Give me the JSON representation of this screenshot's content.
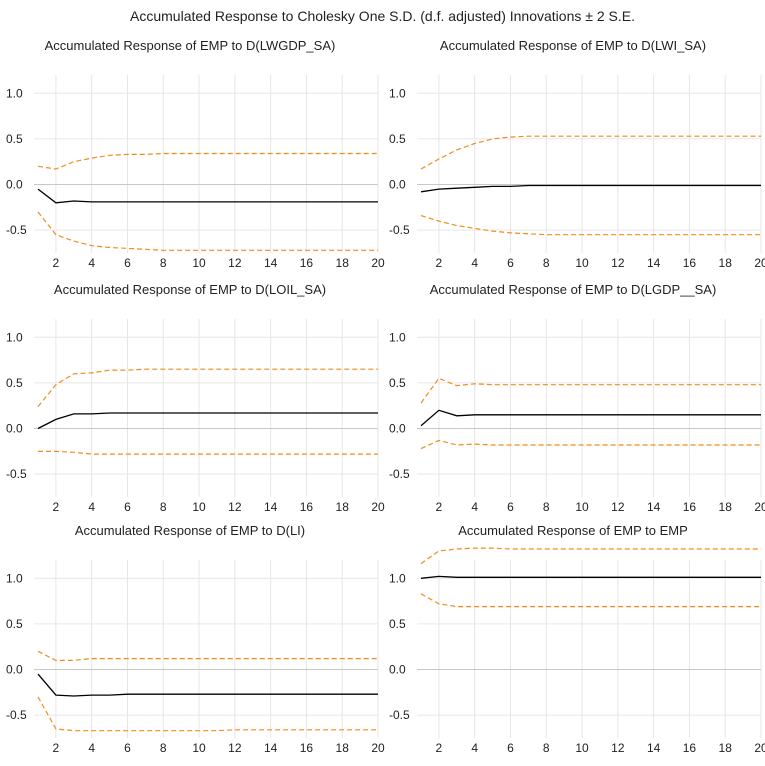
{
  "title": "Accumulated Response to Cholesky One S.D. (d.f. adjusted) Innovations ± 2 S.E.",
  "colors": {
    "response": "#000000",
    "bands": "#f08c1e",
    "grid": "#e6e6e6",
    "zero": "#c8c8c8"
  },
  "chart_data": [
    {
      "type": "line",
      "title": "Accumulated Response of EMP to D(LWGDP_SA)",
      "x": [
        1,
        2,
        3,
        4,
        5,
        6,
        7,
        8,
        9,
        10,
        11,
        12,
        13,
        14,
        15,
        16,
        17,
        18,
        19,
        20
      ],
      "xticks": [
        2,
        4,
        6,
        8,
        10,
        12,
        14,
        16,
        18,
        20
      ],
      "yticks": [
        -0.5,
        0.0,
        0.5,
        1.0
      ],
      "ylim": [
        -0.75,
        1.2
      ],
      "grid": true,
      "series": [
        {
          "role": "response",
          "values": [
            -0.05,
            -0.2,
            -0.18,
            -0.19,
            -0.19,
            -0.19,
            -0.19,
            -0.19,
            -0.19,
            -0.19,
            -0.19,
            -0.19,
            -0.19,
            -0.19,
            -0.19,
            -0.19,
            -0.19,
            -0.19,
            -0.19,
            -0.19
          ]
        },
        {
          "role": "upper",
          "values": [
            0.2,
            0.17,
            0.25,
            0.29,
            0.32,
            0.33,
            0.33,
            0.34,
            0.34,
            0.34,
            0.34,
            0.34,
            0.34,
            0.34,
            0.34,
            0.34,
            0.34,
            0.34,
            0.34,
            0.34
          ]
        },
        {
          "role": "lower",
          "values": [
            -0.3,
            -0.55,
            -0.62,
            -0.67,
            -0.69,
            -0.7,
            -0.71,
            -0.72,
            -0.72,
            -0.72,
            -0.72,
            -0.72,
            -0.72,
            -0.72,
            -0.72,
            -0.72,
            -0.72,
            -0.72,
            -0.72,
            -0.72
          ]
        }
      ]
    },
    {
      "type": "line",
      "title": "Accumulated Response of EMP to D(LWI_SA)",
      "x": [
        1,
        2,
        3,
        4,
        5,
        6,
        7,
        8,
        9,
        10,
        11,
        12,
        13,
        14,
        15,
        16,
        17,
        18,
        19,
        20
      ],
      "xticks": [
        2,
        4,
        6,
        8,
        10,
        12,
        14,
        16,
        18,
        20
      ],
      "yticks": [
        -0.5,
        0.0,
        0.5,
        1.0
      ],
      "ylim": [
        -0.75,
        1.2
      ],
      "grid": true,
      "series": [
        {
          "role": "response",
          "values": [
            -0.08,
            -0.05,
            -0.04,
            -0.03,
            -0.02,
            -0.02,
            -0.01,
            -0.01,
            -0.01,
            -0.01,
            -0.01,
            -0.01,
            -0.01,
            -0.01,
            -0.01,
            -0.01,
            -0.01,
            -0.01,
            -0.01,
            -0.01
          ]
        },
        {
          "role": "upper",
          "values": [
            0.17,
            0.28,
            0.38,
            0.45,
            0.5,
            0.52,
            0.53,
            0.53,
            0.53,
            0.53,
            0.53,
            0.53,
            0.53,
            0.53,
            0.53,
            0.53,
            0.53,
            0.53,
            0.53,
            0.53
          ]
        },
        {
          "role": "lower",
          "values": [
            -0.34,
            -0.4,
            -0.45,
            -0.48,
            -0.51,
            -0.53,
            -0.54,
            -0.55,
            -0.55,
            -0.55,
            -0.55,
            -0.55,
            -0.55,
            -0.55,
            -0.55,
            -0.55,
            -0.55,
            -0.55,
            -0.55,
            -0.55
          ]
        }
      ]
    },
    {
      "type": "line",
      "title": "Accumulated Response of EMP to D(LOIL_SA)",
      "x": [
        1,
        2,
        3,
        4,
        5,
        6,
        7,
        8,
        9,
        10,
        11,
        12,
        13,
        14,
        15,
        16,
        17,
        18,
        19,
        20
      ],
      "xticks": [
        2,
        4,
        6,
        8,
        10,
        12,
        14,
        16,
        18,
        20
      ],
      "yticks": [
        -0.5,
        0.0,
        0.5,
        1.0
      ],
      "ylim": [
        -0.75,
        1.2
      ],
      "grid": true,
      "series": [
        {
          "role": "response",
          "values": [
            0.0,
            0.1,
            0.16,
            0.16,
            0.17,
            0.17,
            0.17,
            0.17,
            0.17,
            0.17,
            0.17,
            0.17,
            0.17,
            0.17,
            0.17,
            0.17,
            0.17,
            0.17,
            0.17,
            0.17
          ]
        },
        {
          "role": "upper",
          "values": [
            0.24,
            0.48,
            0.6,
            0.61,
            0.64,
            0.64,
            0.65,
            0.65,
            0.65,
            0.65,
            0.65,
            0.65,
            0.65,
            0.65,
            0.65,
            0.65,
            0.65,
            0.65,
            0.65,
            0.65
          ]
        },
        {
          "role": "lower",
          "values": [
            -0.25,
            -0.25,
            -0.26,
            -0.28,
            -0.28,
            -0.28,
            -0.28,
            -0.28,
            -0.28,
            -0.28,
            -0.28,
            -0.28,
            -0.28,
            -0.28,
            -0.28,
            -0.28,
            -0.28,
            -0.28,
            -0.28,
            -0.28
          ]
        }
      ]
    },
    {
      "type": "line",
      "title": "Accumulated Response of EMP to D(LGDP__SA)",
      "x": [
        1,
        2,
        3,
        4,
        5,
        6,
        7,
        8,
        9,
        10,
        11,
        12,
        13,
        14,
        15,
        16,
        17,
        18,
        19,
        20
      ],
      "xticks": [
        2,
        4,
        6,
        8,
        10,
        12,
        14,
        16,
        18,
        20
      ],
      "yticks": [
        -0.5,
        0.0,
        0.5,
        1.0
      ],
      "ylim": [
        -0.75,
        1.2
      ],
      "grid": true,
      "series": [
        {
          "role": "response",
          "values": [
            0.03,
            0.2,
            0.14,
            0.15,
            0.15,
            0.15,
            0.15,
            0.15,
            0.15,
            0.15,
            0.15,
            0.15,
            0.15,
            0.15,
            0.15,
            0.15,
            0.15,
            0.15,
            0.15,
            0.15
          ]
        },
        {
          "role": "upper",
          "values": [
            0.28,
            0.55,
            0.47,
            0.49,
            0.48,
            0.48,
            0.48,
            0.48,
            0.48,
            0.48,
            0.48,
            0.48,
            0.48,
            0.48,
            0.48,
            0.48,
            0.48,
            0.48,
            0.48,
            0.48
          ]
        },
        {
          "role": "lower",
          "values": [
            -0.22,
            -0.13,
            -0.18,
            -0.17,
            -0.18,
            -0.18,
            -0.18,
            -0.18,
            -0.18,
            -0.18,
            -0.18,
            -0.18,
            -0.18,
            -0.18,
            -0.18,
            -0.18,
            -0.18,
            -0.18,
            -0.18,
            -0.18
          ]
        }
      ]
    },
    {
      "type": "line",
      "title": "Accumulated Response of EMP to D(LI)",
      "x": [
        1,
        2,
        3,
        4,
        5,
        6,
        7,
        8,
        9,
        10,
        11,
        12,
        13,
        14,
        15,
        16,
        17,
        18,
        19,
        20
      ],
      "xticks": [
        2,
        4,
        6,
        8,
        10,
        12,
        14,
        16,
        18,
        20
      ],
      "yticks": [
        -0.5,
        0.0,
        0.5,
        1.0
      ],
      "ylim": [
        -0.75,
        1.2
      ],
      "grid": true,
      "series": [
        {
          "role": "response",
          "values": [
            -0.05,
            -0.28,
            -0.29,
            -0.28,
            -0.28,
            -0.27,
            -0.27,
            -0.27,
            -0.27,
            -0.27,
            -0.27,
            -0.27,
            -0.27,
            -0.27,
            -0.27,
            -0.27,
            -0.27,
            -0.27,
            -0.27,
            -0.27
          ]
        },
        {
          "role": "upper",
          "values": [
            0.2,
            0.1,
            0.1,
            0.12,
            0.12,
            0.12,
            0.12,
            0.12,
            0.12,
            0.12,
            0.12,
            0.12,
            0.12,
            0.12,
            0.12,
            0.12,
            0.12,
            0.12,
            0.12,
            0.12
          ]
        },
        {
          "role": "lower",
          "values": [
            -0.3,
            -0.65,
            -0.67,
            -0.67,
            -0.67,
            -0.67,
            -0.67,
            -0.67,
            -0.67,
            -0.67,
            -0.67,
            -0.66,
            -0.66,
            -0.66,
            -0.66,
            -0.66,
            -0.66,
            -0.66,
            -0.66,
            -0.66
          ]
        }
      ]
    },
    {
      "type": "line",
      "title": "Accumulated Response of EMP to EMP",
      "x": [
        1,
        2,
        3,
        4,
        5,
        6,
        7,
        8,
        9,
        10,
        11,
        12,
        13,
        14,
        15,
        16,
        17,
        18,
        19,
        20
      ],
      "xticks": [
        2,
        4,
        6,
        8,
        10,
        12,
        14,
        16,
        18,
        20
      ],
      "yticks": [
        -0.5,
        0.0,
        0.5,
        1.0
      ],
      "ylim": [
        -0.75,
        1.2
      ],
      "grid": true,
      "series": [
        {
          "role": "response",
          "values": [
            1.0,
            1.02,
            1.01,
            1.01,
            1.01,
            1.01,
            1.01,
            1.01,
            1.01,
            1.01,
            1.01,
            1.01,
            1.01,
            1.01,
            1.01,
            1.01,
            1.01,
            1.01,
            1.01,
            1.01
          ]
        },
        {
          "role": "upper",
          "values": [
            1.16,
            1.3,
            1.32,
            1.33,
            1.33,
            1.32,
            1.32,
            1.32,
            1.32,
            1.32,
            1.32,
            1.32,
            1.32,
            1.32,
            1.32,
            1.32,
            1.32,
            1.32,
            1.32,
            1.32
          ]
        },
        {
          "role": "lower",
          "values": [
            0.83,
            0.72,
            0.69,
            0.69,
            0.69,
            0.69,
            0.69,
            0.69,
            0.69,
            0.69,
            0.69,
            0.69,
            0.69,
            0.69,
            0.69,
            0.69,
            0.69,
            0.69,
            0.69,
            0.69
          ]
        }
      ]
    }
  ]
}
